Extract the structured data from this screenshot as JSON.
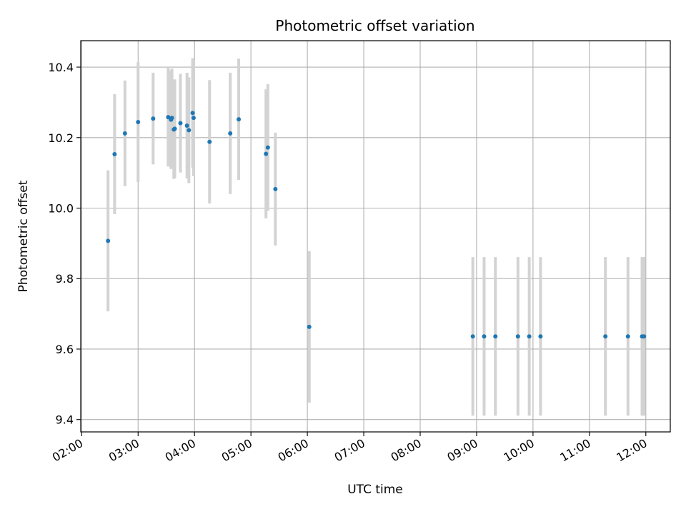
{
  "chart_data": {
    "type": "scatter",
    "title": "Photometric offset variation",
    "xlabel": "UTC time",
    "ylabel": "Photometric offset",
    "x_ticks": [
      "02:00",
      "03:00",
      "04:00",
      "05:00",
      "06:00",
      "07:00",
      "08:00",
      "09:00",
      "10:00",
      "11:00",
      "12:00"
    ],
    "y_ticks": [
      "9.4",
      "9.6",
      "9.8",
      "10.0",
      "10.2",
      "10.4"
    ],
    "xlim": [
      "01:59",
      "12:26"
    ],
    "ylim": [
      9.365,
      10.475
    ],
    "grid": true,
    "marker_color": "#1f77b4",
    "errorbar_color": "#d3d3d3",
    "points": [
      {
        "x": "02:28",
        "y": 9.907,
        "err": 0.2
      },
      {
        "x": "02:35",
        "y": 10.153,
        "err": 0.17
      },
      {
        "x": "02:46",
        "y": 10.212,
        "err": 0.15
      },
      {
        "x": "03:00",
        "y": 10.244,
        "err": 0.17
      },
      {
        "x": "03:16",
        "y": 10.254,
        "err": 0.13
      },
      {
        "x": "03:32",
        "y": 10.258,
        "err": 0.14
      },
      {
        "x": "03:35",
        "y": 10.251,
        "err": 0.14
      },
      {
        "x": "03:36",
        "y": 10.256,
        "err": 0.14
      },
      {
        "x": "03:38",
        "y": 10.223,
        "err": 0.14
      },
      {
        "x": "03:39",
        "y": 10.225,
        "err": 0.14
      },
      {
        "x": "03:45",
        "y": 10.241,
        "err": 0.14
      },
      {
        "x": "03:52",
        "y": 10.234,
        "err": 0.15
      },
      {
        "x": "03:54",
        "y": 10.221,
        "err": 0.15
      },
      {
        "x": "03:58",
        "y": 10.27,
        "err": 0.155
      },
      {
        "x": "03:59",
        "y": 10.256,
        "err": 0.165
      },
      {
        "x": "04:16",
        "y": 10.188,
        "err": 0.175
      },
      {
        "x": "04:38",
        "y": 10.212,
        "err": 0.172
      },
      {
        "x": "04:47",
        "y": 10.252,
        "err": 0.172
      },
      {
        "x": "05:16",
        "y": 10.154,
        "err": 0.183
      },
      {
        "x": "05:18",
        "y": 10.172,
        "err": 0.18
      },
      {
        "x": "05:26",
        "y": 10.054,
        "err": 0.16
      },
      {
        "x": "06:02",
        "y": 9.663,
        "err": 0.215
      },
      {
        "x": "08:56",
        "y": 9.636,
        "err": 0.225
      },
      {
        "x": "09:08",
        "y": 9.636,
        "err": 0.225
      },
      {
        "x": "09:20",
        "y": 9.636,
        "err": 0.225
      },
      {
        "x": "09:44",
        "y": 9.636,
        "err": 0.225
      },
      {
        "x": "09:56",
        "y": 9.636,
        "err": 0.225
      },
      {
        "x": "10:08",
        "y": 9.636,
        "err": 0.225
      },
      {
        "x": "11:17",
        "y": 9.636,
        "err": 0.225
      },
      {
        "x": "11:41",
        "y": 9.636,
        "err": 0.225
      },
      {
        "x": "11:56",
        "y": 9.636,
        "err": 0.225
      },
      {
        "x": "11:58",
        "y": 9.636,
        "err": 0.225
      }
    ]
  }
}
